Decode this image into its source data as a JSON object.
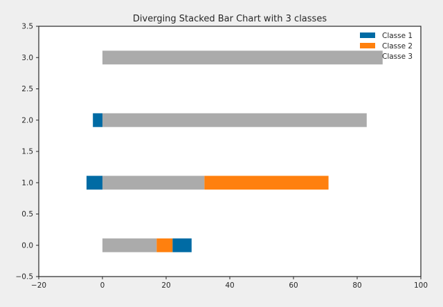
{
  "chart_data": {
    "type": "bar",
    "orientation": "horizontal",
    "stacking": "diverging",
    "title": "Diverging Stacked Bar Chart with 3 classes",
    "xlabel": "",
    "ylabel": "",
    "xlim": [
      -20,
      100
    ],
    "ylim": [
      -0.5,
      3.5
    ],
    "xticks": [
      -20,
      0,
      20,
      40,
      60,
      80,
      100
    ],
    "yticks": [
      -0.5,
      0.0,
      0.5,
      1.0,
      1.5,
      2.0,
      2.5,
      3.0,
      3.5
    ],
    "xtick_labels": [
      "−20",
      "0",
      "20",
      "40",
      "60",
      "80",
      "100"
    ],
    "ytick_labels": [
      "−0.5",
      "0.0",
      "0.5",
      "1.0",
      "1.5",
      "2.0",
      "2.5",
      "3.0",
      "3.5"
    ],
    "categories": [
      0,
      1,
      2,
      3
    ],
    "bar_height": 0.22,
    "grid": false,
    "legend_position": "top-right",
    "series": [
      {
        "name": "Classe 1",
        "color": "#006ba4",
        "segments": [
          {
            "y": 0,
            "from": 22,
            "to": 28
          },
          {
            "y": 1,
            "from": -5,
            "to": 0
          },
          {
            "y": 2,
            "from": -3,
            "to": 0
          }
        ]
      },
      {
        "name": "Classe 2",
        "color": "#ff800e",
        "segments": [
          {
            "y": 0,
            "from": 17,
            "to": 22
          },
          {
            "y": 1,
            "from": 32,
            "to": 71
          }
        ]
      },
      {
        "name": "Classe 3",
        "color": "#ababab",
        "segments": [
          {
            "y": 0,
            "from": 0,
            "to": 17
          },
          {
            "y": 1,
            "from": 0,
            "to": 32
          },
          {
            "y": 2,
            "from": 0,
            "to": 83
          },
          {
            "y": 3,
            "from": 0,
            "to": 88
          }
        ]
      }
    ]
  }
}
